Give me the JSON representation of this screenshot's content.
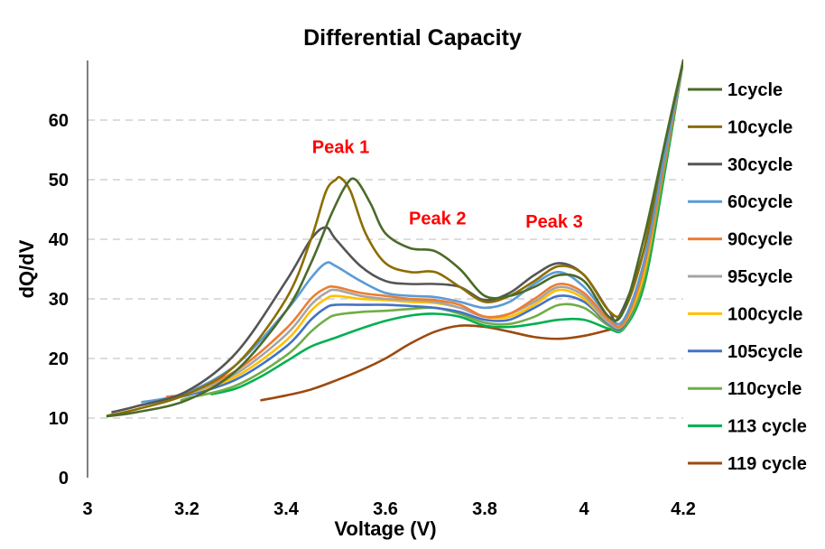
{
  "chart_data": {
    "type": "line",
    "title": "Differential Capacity",
    "xlabel": "Voltage (V)",
    "ylabel": "dQ/dV",
    "xlim": [
      3.0,
      4.2
    ],
    "ylim": [
      0,
      70
    ],
    "xticks": [
      3,
      3.2,
      3.4,
      3.6,
      3.8,
      4,
      4.2
    ],
    "xtick_labels": [
      "3",
      "3.2",
      "3.4",
      "3.6",
      "3.8",
      "4",
      "4.2"
    ],
    "yticks": [
      0,
      10,
      20,
      30,
      40,
      50,
      60
    ],
    "ytick_labels": [
      "0",
      "10",
      "20",
      "30",
      "40",
      "50",
      "60"
    ],
    "grid": "horizontal-dashed",
    "legend_position": "right",
    "annotations": [
      {
        "text": "Peak 1",
        "x": 3.51,
        "y": 54.5
      },
      {
        "text": "Peak 2",
        "x": 3.705,
        "y": 42.5
      },
      {
        "text": "Peak 3",
        "x": 3.94,
        "y": 42
      }
    ],
    "series": [
      {
        "name": "1cycle",
        "color": "#4a6b2a",
        "x": [
          3.04,
          3.1,
          3.2,
          3.3,
          3.4,
          3.45,
          3.49,
          3.52,
          3.54,
          3.57,
          3.6,
          3.65,
          3.7,
          3.75,
          3.8,
          3.85,
          3.9,
          3.95,
          4.0,
          4.05,
          4.08,
          4.12,
          4.16,
          4.2
        ],
        "y": [
          10.3,
          11,
          13,
          18,
          28,
          36,
          44,
          49,
          50,
          46,
          41,
          38.5,
          38,
          35,
          30.5,
          30.5,
          32,
          34,
          33,
          27,
          28,
          40,
          55,
          70
        ]
      },
      {
        "name": "10cycle",
        "color": "#8c6d00",
        "x": [
          3.04,
          3.1,
          3.2,
          3.3,
          3.4,
          3.45,
          3.48,
          3.5,
          3.51,
          3.53,
          3.56,
          3.6,
          3.65,
          3.7,
          3.75,
          3.8,
          3.85,
          3.9,
          3.95,
          4.0,
          4.05,
          4.08,
          4.12,
          4.16,
          4.2
        ],
        "y": [
          10.4,
          11.5,
          14,
          19,
          30,
          40,
          48,
          50,
          50.3,
          48,
          41,
          36,
          34.5,
          34.5,
          32,
          29.5,
          30.5,
          33,
          35.5,
          34,
          28,
          28,
          38,
          55,
          70
        ]
      },
      {
        "name": "30cycle",
        "color": "#555555",
        "x": [
          3.05,
          3.1,
          3.2,
          3.3,
          3.4,
          3.45,
          3.48,
          3.5,
          3.55,
          3.6,
          3.65,
          3.7,
          3.75,
          3.8,
          3.85,
          3.9,
          3.95,
          4.0,
          4.05,
          4.07,
          4.12,
          4.16,
          4.2
        ],
        "y": [
          11,
          12,
          14.5,
          21,
          33,
          40,
          42,
          40,
          35.5,
          33,
          32.5,
          32.5,
          32,
          29.8,
          31,
          34,
          36,
          34,
          28,
          27,
          38,
          55,
          70
        ]
      },
      {
        "name": "60cycle",
        "color": "#5b9bd5",
        "x": [
          3.11,
          3.15,
          3.2,
          3.3,
          3.4,
          3.45,
          3.48,
          3.5,
          3.55,
          3.6,
          3.65,
          3.7,
          3.75,
          3.8,
          3.85,
          3.9,
          3.95,
          4.0,
          4.05,
          4.08,
          4.12,
          4.16,
          4.2
        ],
        "y": [
          12.7,
          13.2,
          14.2,
          19,
          28,
          33.5,
          36,
          35.5,
          33,
          31,
          30.5,
          30.3,
          29.5,
          28.5,
          29.5,
          32.5,
          34.5,
          32,
          27,
          26.5,
          36,
          53,
          70
        ]
      },
      {
        "name": "90cycle",
        "color": "#ed7d31",
        "x": [
          3.16,
          3.2,
          3.3,
          3.4,
          3.45,
          3.48,
          3.5,
          3.55,
          3.6,
          3.65,
          3.7,
          3.75,
          3.8,
          3.85,
          3.9,
          3.95,
          4.0,
          4.05,
          4.08,
          4.12,
          4.16,
          4.2
        ],
        "y": [
          13.6,
          14.2,
          18,
          25,
          30,
          31.8,
          32,
          31,
          30.5,
          30,
          29.8,
          29,
          27,
          27.5,
          30,
          32.5,
          31,
          26.5,
          26,
          35,
          52,
          70
        ]
      },
      {
        "name": "95cycle",
        "color": "#a5a5a5",
        "x": [
          3.17,
          3.2,
          3.3,
          3.4,
          3.45,
          3.48,
          3.5,
          3.55,
          3.6,
          3.65,
          3.7,
          3.75,
          3.8,
          3.85,
          3.9,
          3.95,
          4.0,
          4.05,
          4.08,
          4.12,
          4.16,
          4.2
        ],
        "y": [
          13.7,
          14,
          17.5,
          24,
          29,
          31,
          31.5,
          30.5,
          30,
          29.8,
          29.5,
          28.5,
          27,
          27.5,
          29.5,
          32,
          30.5,
          26,
          26,
          35,
          52,
          70
        ]
      },
      {
        "name": "100cycle",
        "color": "#ffc000",
        "x": [
          3.17,
          3.2,
          3.3,
          3.4,
          3.45,
          3.48,
          3.5,
          3.55,
          3.6,
          3.65,
          3.7,
          3.75,
          3.8,
          3.85,
          3.9,
          3.95,
          4.0,
          4.05,
          4.08,
          4.12,
          4.16,
          4.2
        ],
        "y": [
          13.5,
          14,
          17,
          23,
          28,
          30,
          30.5,
          30,
          29.8,
          29.5,
          29.3,
          28.5,
          27,
          27,
          29,
          31.5,
          30,
          26,
          25.8,
          34,
          52,
          70
        ]
      },
      {
        "name": "105cycle",
        "color": "#4472c4",
        "x": [
          3.16,
          3.2,
          3.3,
          3.4,
          3.45,
          3.48,
          3.5,
          3.55,
          3.6,
          3.65,
          3.7,
          3.75,
          3.8,
          3.85,
          3.9,
          3.95,
          4.0,
          4.05,
          4.08,
          4.12,
          4.16,
          4.2
        ],
        "y": [
          13.4,
          13.8,
          16.5,
          22,
          26.5,
          28.5,
          29,
          29,
          29,
          28.8,
          28.5,
          27.8,
          26.5,
          26.5,
          28.5,
          30.5,
          29.5,
          25.8,
          25.5,
          34,
          52,
          70
        ]
      },
      {
        "name": "110cycle",
        "color": "#70ad47",
        "x": [
          3.19,
          3.2,
          3.3,
          3.4,
          3.45,
          3.48,
          3.5,
          3.55,
          3.6,
          3.65,
          3.7,
          3.75,
          3.8,
          3.85,
          3.9,
          3.95,
          4.0,
          4.05,
          4.08,
          4.12,
          4.16,
          4.2
        ],
        "y": [
          13,
          13.3,
          15.5,
          20.5,
          24.5,
          26.5,
          27.3,
          27.8,
          28,
          28.3,
          28.5,
          27.5,
          26,
          25.8,
          27,
          29,
          28.5,
          25.5,
          25.2,
          33,
          51,
          70
        ]
      },
      {
        "name": "113 cycle",
        "color": "#00b050",
        "x": [
          3.25,
          3.3,
          3.35,
          3.4,
          3.45,
          3.5,
          3.55,
          3.6,
          3.65,
          3.7,
          3.75,
          3.8,
          3.85,
          3.9,
          3.95,
          4.0,
          4.05,
          4.08,
          4.12,
          4.16,
          4.2
        ],
        "y": [
          14,
          15,
          17,
          19.5,
          22,
          23.5,
          25,
          26.3,
          27.2,
          27.5,
          27,
          25.5,
          25.3,
          25.8,
          26.5,
          26.5,
          25,
          25,
          32,
          50,
          70
        ]
      },
      {
        "name": "119 cycle",
        "color": "#9c4a10",
        "x": [
          3.35,
          3.4,
          3.45,
          3.5,
          3.55,
          3.6,
          3.65,
          3.7,
          3.75,
          3.8,
          3.85,
          3.9,
          3.95,
          4.0,
          4.05,
          4.08,
          4.12,
          4.16,
          4.2
        ],
        "y": [
          13,
          13.8,
          14.8,
          16.3,
          18,
          20,
          22.5,
          24.5,
          25.5,
          25.3,
          24.5,
          23.6,
          23.3,
          23.8,
          24.8,
          25.5,
          32,
          50,
          70
        ]
      }
    ]
  }
}
